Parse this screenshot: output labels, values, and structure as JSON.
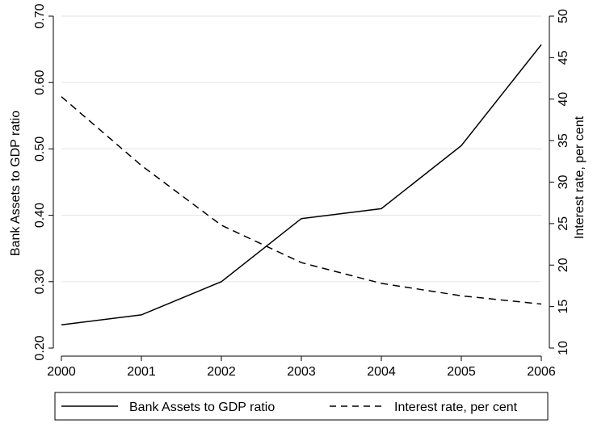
{
  "chart_data": {
    "type": "line",
    "x": [
      2000,
      2001,
      2002,
      2003,
      2004,
      2005,
      2006
    ],
    "x_ticks": [
      "2000",
      "2001",
      "2002",
      "2003",
      "2004",
      "2005",
      "2006"
    ],
    "xlim": [
      2000,
      2006
    ],
    "left_axis": {
      "label": "Bank Assets to GDP ratio",
      "ylim": [
        0.2,
        0.7
      ],
      "ticks": [
        0.2,
        0.3,
        0.4,
        0.5,
        0.6,
        0.7
      ],
      "tick_labels": [
        "0.20",
        "0.30",
        "0.40",
        "0.50",
        "0.60",
        "0.70"
      ]
    },
    "right_axis": {
      "label": "Interest rate, per cent",
      "ylim": [
        10,
        50
      ],
      "ticks": [
        10,
        15,
        20,
        25,
        30,
        35,
        40,
        45,
        50
      ],
      "tick_labels": [
        "10",
        "15",
        "20",
        "25",
        "30",
        "35",
        "40",
        "45",
        "50"
      ]
    },
    "series": [
      {
        "name": "Bank Assets to GDP ratio",
        "axis": "left",
        "style": "solid",
        "values": [
          0.235,
          0.25,
          0.3,
          0.395,
          0.41,
          0.505,
          0.657
        ]
      },
      {
        "name": "Interest rate, per cent",
        "axis": "right",
        "style": "dashed",
        "values": [
          40.3,
          32.0,
          24.8,
          20.3,
          17.8,
          16.3,
          15.3
        ]
      }
    ],
    "legend": {
      "placement": "bottom",
      "labels": [
        "Bank Assets to GDP ratio",
        "Interest rate, per cent"
      ]
    },
    "grid": "horizontal",
    "colors": {
      "line": "#000000",
      "grid": "#e8e8e8",
      "axis": "#000000"
    }
  }
}
